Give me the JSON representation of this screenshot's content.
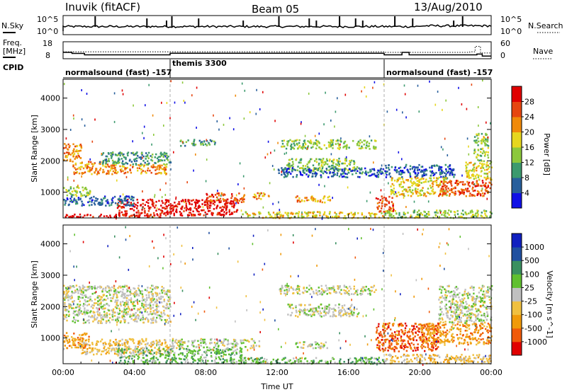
{
  "header": {
    "station": "Inuvik (fitACF)",
    "beam": "Beam 05",
    "date": "13/Aug/2010"
  },
  "chart_data": [
    {
      "type": "line",
      "name": "noise-panel",
      "labels": {
        "left": "N.Sky",
        "right": "N.Search"
      },
      "left_ticks": [
        "10^5",
        "10^0"
      ],
      "right_ticks": [
        "10^5",
        "10^0"
      ],
      "xlim": [
        0,
        24
      ],
      "spikes_hours": [
        1.8,
        4.7,
        5.8,
        6.1,
        7.6,
        10.1,
        12.1,
        13.8,
        14.2,
        15.5,
        16.4,
        16.8,
        18.6,
        19.6,
        21.9,
        22.4
      ]
    },
    {
      "type": "line",
      "name": "freq-panel",
      "labels": {
        "left_top": "Freq.",
        "left_bottom": "[MHz]",
        "right": "Nave"
      },
      "left_ticks": [
        "18",
        "8"
      ],
      "right_ticks": [
        "60",
        "0"
      ],
      "xlim": [
        0,
        24
      ],
      "freq_steps": [
        [
          0,
          11.2
        ],
        [
          0.5,
          10.5
        ],
        [
          1.2,
          9.6
        ],
        [
          6.0,
          10.6
        ],
        [
          18.0,
          9.6
        ],
        [
          19.0,
          11.2
        ],
        [
          19.4,
          9.6
        ],
        [
          23.2,
          10.1
        ],
        [
          23.5,
          8.8
        ]
      ],
      "nave_steps": [
        [
          0,
          11.5
        ],
        [
          18.0,
          11.2
        ],
        [
          22.8,
          11.5
        ],
        [
          23.1,
          15.0
        ],
        [
          23.4,
          10.8
        ]
      ]
    },
    {
      "type": "table",
      "name": "cpid",
      "label": "CPID",
      "segments": [
        {
          "start": 0,
          "end": 6.0,
          "text": "normalsound (fast) -157"
        },
        {
          "start": 6.0,
          "end": 18.0,
          "text": "themis 3300"
        },
        {
          "start": 18.0,
          "end": 24,
          "text": "normalsound (fast) -157"
        }
      ]
    },
    {
      "type": "heatmap",
      "name": "power",
      "ylabel": "Slant Range [km]",
      "ylim": [
        180,
        4600
      ],
      "yticks": [
        1000,
        2000,
        3000,
        4000
      ],
      "colorbar": {
        "label": "Power [dB]",
        "ticks": [
          "4",
          "8",
          "12",
          "16",
          "20",
          "24",
          "28"
        ],
        "colors": [
          "#1010e6",
          "#285f9c",
          "#3c9a6e",
          "#8cc83c",
          "#e6d61e",
          "#f08a0a",
          "#e64610",
          "#e00000"
        ]
      },
      "blobs": [
        {
          "x0": 0.0,
          "x1": 5.9,
          "y0": 220,
          "y1": 320,
          "level": 7
        },
        {
          "x0": 3.0,
          "x1": 9.8,
          "y0": 280,
          "y1": 800,
          "level": 7
        },
        {
          "x0": 8.0,
          "x1": 10.2,
          "y0": 700,
          "y1": 1000,
          "level": 6
        },
        {
          "x0": 0.0,
          "x1": 1.0,
          "y0": 2000,
          "y1": 2600,
          "level": 5
        },
        {
          "x0": 0.5,
          "x1": 2.5,
          "y0": 1600,
          "y1": 2000,
          "level": 5
        },
        {
          "x0": 2.5,
          "x1": 5.8,
          "y0": 1600,
          "y1": 1900,
          "level": 5
        },
        {
          "x0": 0.0,
          "x1": 1.5,
          "y0": 900,
          "y1": 1200,
          "level": 3
        },
        {
          "x0": 0.0,
          "x1": 4.0,
          "y0": 600,
          "y1": 900,
          "level": 1
        },
        {
          "x0": 2.0,
          "x1": 6.0,
          "y0": 1900,
          "y1": 2300,
          "level": 2
        },
        {
          "x0": 10.5,
          "x1": 11.5,
          "y0": 800,
          "y1": 1000,
          "level": 5
        },
        {
          "x0": 12.2,
          "x1": 17.5,
          "y0": 2400,
          "y1": 2700,
          "level": 3
        },
        {
          "x0": 12.5,
          "x1": 16.5,
          "y0": 1700,
          "y1": 2100,
          "level": 3
        },
        {
          "x0": 12.0,
          "x1": 18.0,
          "y0": 1500,
          "y1": 1800,
          "level": 1
        },
        {
          "x0": 10.0,
          "x1": 18.0,
          "y0": 200,
          "y1": 400,
          "level": 4
        },
        {
          "x0": 13.0,
          "x1": 15.0,
          "y0": 700,
          "y1": 900,
          "level": 5
        },
        {
          "x0": 17.5,
          "x1": 18.5,
          "y0": 400,
          "y1": 900,
          "level": 6
        },
        {
          "x0": 18.3,
          "x1": 21.5,
          "y0": 900,
          "y1": 1500,
          "level": 4
        },
        {
          "x0": 21.0,
          "x1": 24.0,
          "y0": 900,
          "y1": 1400,
          "level": 6
        },
        {
          "x0": 22.5,
          "x1": 24.0,
          "y0": 1400,
          "y1": 2000,
          "level": 4
        },
        {
          "x0": 18.0,
          "x1": 22.0,
          "y0": 1500,
          "y1": 1900,
          "level": 1
        },
        {
          "x0": 23.0,
          "x1": 23.8,
          "y0": 2000,
          "y1": 2900,
          "level": 3
        },
        {
          "x0": 18.0,
          "x1": 24.0,
          "y0": 200,
          "y1": 450,
          "level": 3
        },
        {
          "x0": 6.5,
          "x1": 8.5,
          "y0": 2500,
          "y1": 2700,
          "level": 2
        }
      ]
    },
    {
      "type": "heatmap",
      "name": "velocity",
      "xlabel": "Time UT",
      "ylabel": "Slant Range [km]",
      "ylim": [
        180,
        4600
      ],
      "yticks": [
        1000,
        2000,
        3000,
        4000
      ],
      "xticks": [
        "00:00",
        "04:00",
        "08:00",
        "12:00",
        "16:00",
        "20:00",
        "00:00"
      ],
      "colorbar": {
        "label": "Velocity [m s^-1]",
        "ticks": [
          "-1000",
          "-500",
          "-100",
          "-25",
          "25",
          "100",
          "500",
          "1000"
        ],
        "colors": [
          "#e00000",
          "#f05a0a",
          "#f09a0a",
          "#f0c040",
          "#c0c0c0",
          "#60c030",
          "#3a9060",
          "#2050a0",
          "#1020c0"
        ]
      },
      "blobs": [
        {
          "x0": 0.0,
          "x1": 6.0,
          "y0": 1500,
          "y1": 2700,
          "level": 4
        },
        {
          "x0": 0.0,
          "x1": 1.5,
          "y0": 700,
          "y1": 1200,
          "level": 2
        },
        {
          "x0": 1.0,
          "x1": 6.0,
          "y0": 500,
          "y1": 1000,
          "level": 3
        },
        {
          "x0": 3.0,
          "x1": 10.0,
          "y0": 200,
          "y1": 700,
          "level": 5
        },
        {
          "x0": 6.0,
          "x1": 11.0,
          "y0": 700,
          "y1": 1000,
          "level": 4
        },
        {
          "x0": 10.0,
          "x1": 18.0,
          "y0": 200,
          "y1": 400,
          "level": 5
        },
        {
          "x0": 12.0,
          "x1": 17.5,
          "y0": 2400,
          "y1": 2700,
          "level": 4
        },
        {
          "x0": 12.5,
          "x1": 16.5,
          "y0": 1700,
          "y1": 2100,
          "level": 4
        },
        {
          "x0": 13.0,
          "x1": 15.0,
          "y0": 700,
          "y1": 900,
          "level": 4
        },
        {
          "x0": 17.5,
          "x1": 21.0,
          "y0": 600,
          "y1": 1500,
          "level": 1
        },
        {
          "x0": 20.0,
          "x1": 24.0,
          "y0": 800,
          "y1": 1500,
          "level": 2
        },
        {
          "x0": 21.0,
          "x1": 24.0,
          "y0": 1500,
          "y1": 2700,
          "level": 4
        },
        {
          "x0": 18.0,
          "x1": 24.0,
          "y0": 200,
          "y1": 500,
          "level": 3
        }
      ]
    }
  ]
}
